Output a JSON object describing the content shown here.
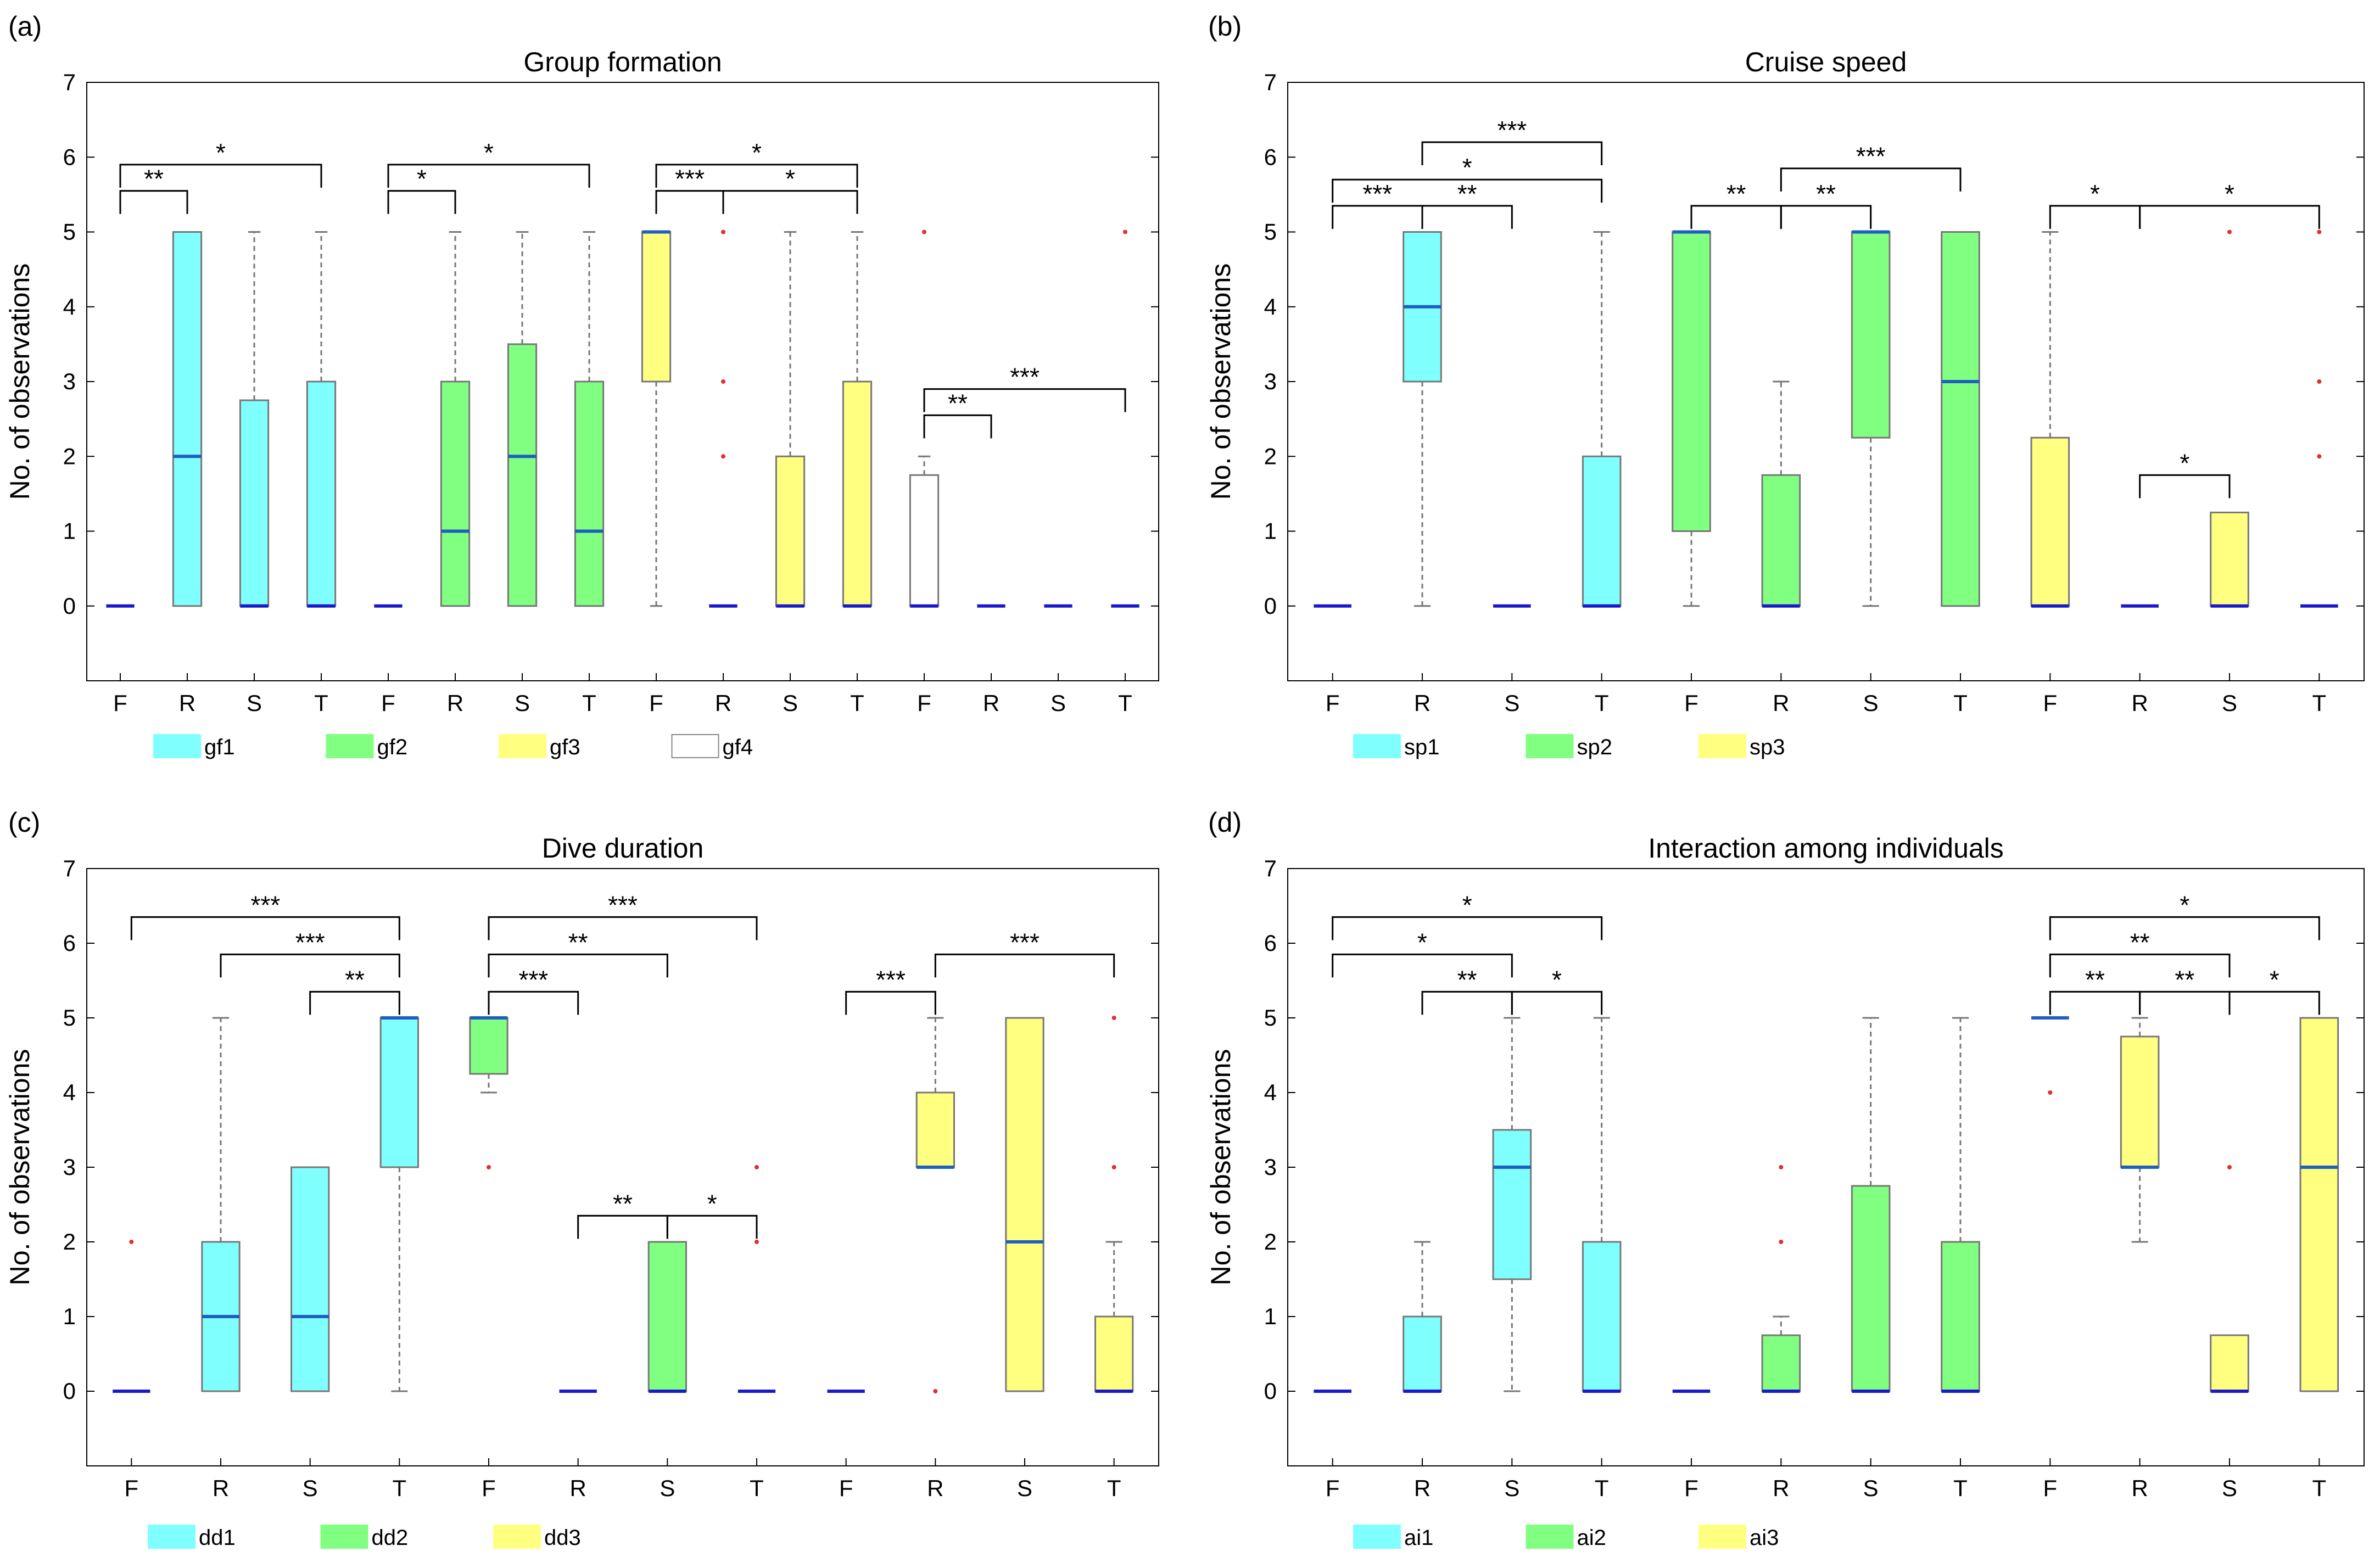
{
  "colors": {
    "cyan": "#80ffff",
    "green": "#80ff80",
    "yellow": "#ffff80",
    "white": "#ffffff",
    "median": "#1f5fbf",
    "zero_median": "#1a1acc",
    "outlier": "#e03030"
  },
  "chart_data": [
    {
      "id": "a",
      "panel_label": "(a)",
      "type": "box",
      "title": "Group formation",
      "ylabel": "No. of observations",
      "ylim": [
        -1,
        7
      ],
      "yticks": [
        0,
        1,
        2,
        3,
        4,
        5,
        6,
        7
      ],
      "categories": [
        "F",
        "R",
        "S",
        "T",
        "F",
        "R",
        "S",
        "T",
        "F",
        "R",
        "S",
        "T",
        "F",
        "R",
        "S",
        "T"
      ],
      "legend": [
        {
          "label": "gf1",
          "color": "#80ffff"
        },
        {
          "label": "gf2",
          "color": "#80ff80"
        },
        {
          "label": "gf3",
          "color": "#ffff80"
        },
        {
          "label": "gf4",
          "color": "#ffffff"
        }
      ],
      "boxes": [
        {
          "q1": 0,
          "med": 0,
          "q3": 0,
          "lo": 0,
          "hi": 0,
          "color": "#80ffff",
          "outliers": []
        },
        {
          "q1": 0,
          "med": 2,
          "q3": 5,
          "lo": 0,
          "hi": 5,
          "color": "#80ffff",
          "outliers": []
        },
        {
          "q1": 0,
          "med": 0,
          "q3": 2.75,
          "lo": 0,
          "hi": 5,
          "color": "#80ffff",
          "outliers": []
        },
        {
          "q1": 0,
          "med": 0,
          "q3": 3,
          "lo": 0,
          "hi": 5,
          "color": "#80ffff",
          "outliers": []
        },
        {
          "q1": 0,
          "med": 0,
          "q3": 0,
          "lo": 0,
          "hi": 0,
          "color": "#80ff80",
          "outliers": []
        },
        {
          "q1": 0,
          "med": 1,
          "q3": 3,
          "lo": 0,
          "hi": 5,
          "color": "#80ff80",
          "outliers": []
        },
        {
          "q1": 0,
          "med": 2,
          "q3": 3.5,
          "lo": 0,
          "hi": 5,
          "color": "#80ff80",
          "outliers": []
        },
        {
          "q1": 0,
          "med": 1,
          "q3": 3,
          "lo": 0,
          "hi": 5,
          "color": "#80ff80",
          "outliers": []
        },
        {
          "q1": 3,
          "med": 5,
          "q3": 5,
          "lo": 0,
          "hi": 5,
          "color": "#ffff80",
          "outliers": []
        },
        {
          "q1": 0,
          "med": 0,
          "q3": 0,
          "lo": 0,
          "hi": 0,
          "color": "#ffff80",
          "outliers": [
            2,
            3,
            5
          ]
        },
        {
          "q1": 0,
          "med": 0,
          "q3": 2,
          "lo": 0,
          "hi": 5,
          "color": "#ffff80",
          "outliers": []
        },
        {
          "q1": 0,
          "med": 0,
          "q3": 3,
          "lo": 0,
          "hi": 5,
          "color": "#ffff80",
          "outliers": []
        },
        {
          "q1": 0,
          "med": 0,
          "q3": 1.75,
          "lo": 0,
          "hi": 2,
          "color": "#ffffff",
          "outliers": [
            5
          ]
        },
        {
          "q1": 0,
          "med": 0,
          "q3": 0,
          "lo": 0,
          "hi": 0,
          "color": "#ffffff",
          "outliers": []
        },
        {
          "q1": 0,
          "med": 0,
          "q3": 0,
          "lo": 0,
          "hi": 0,
          "color": "#ffffff",
          "outliers": []
        },
        {
          "q1": 0,
          "med": 0,
          "q3": 0,
          "lo": 0,
          "hi": 0,
          "color": "#ffffff",
          "outliers": [
            5
          ]
        }
      ],
      "brackets": [
        {
          "from": 1,
          "to": 2,
          "y": 5.55,
          "label": "**"
        },
        {
          "from": 1,
          "to": 4,
          "y": 5.9,
          "label": "*"
        },
        {
          "from": 5,
          "to": 6,
          "y": 5.55,
          "label": "*"
        },
        {
          "from": 5,
          "to": 8,
          "y": 5.9,
          "label": "*"
        },
        {
          "from": 9,
          "to": 10,
          "y": 5.55,
          "label": "***"
        },
        {
          "from": 10,
          "to": 12,
          "y": 5.55,
          "label": "*"
        },
        {
          "from": 9,
          "to": 12,
          "y": 5.9,
          "label": "*"
        },
        {
          "from": 13,
          "to": 14,
          "y": 2.55,
          "label": "**"
        },
        {
          "from": 13,
          "to": 16,
          "y": 2.9,
          "label": "***"
        }
      ]
    },
    {
      "id": "b",
      "panel_label": "(b)",
      "type": "box",
      "title": "Cruise speed",
      "ylabel": "No. of observations",
      "ylim": [
        -1,
        7
      ],
      "yticks": [
        0,
        1,
        2,
        3,
        4,
        5,
        6,
        7
      ],
      "categories": [
        "F",
        "R",
        "S",
        "T",
        "F",
        "R",
        "S",
        "T",
        "F",
        "R",
        "S",
        "T"
      ],
      "legend": [
        {
          "label": "sp1",
          "color": "#80ffff"
        },
        {
          "label": "sp2",
          "color": "#80ff80"
        },
        {
          "label": "sp3",
          "color": "#ffff80"
        }
      ],
      "boxes": [
        {
          "q1": 0,
          "med": 0,
          "q3": 0,
          "lo": 0,
          "hi": 0,
          "color": "#80ffff",
          "outliers": []
        },
        {
          "q1": 3,
          "med": 4,
          "q3": 5,
          "lo": 0,
          "hi": 5,
          "color": "#80ffff",
          "outliers": []
        },
        {
          "q1": 0,
          "med": 0,
          "q3": 0,
          "lo": 0,
          "hi": 0,
          "color": "#80ffff",
          "outliers": []
        },
        {
          "q1": 0,
          "med": 0,
          "q3": 2,
          "lo": 0,
          "hi": 5,
          "color": "#80ffff",
          "outliers": []
        },
        {
          "q1": 1,
          "med": 5,
          "q3": 5,
          "lo": 0,
          "hi": 5,
          "color": "#80ff80",
          "outliers": []
        },
        {
          "q1": 0,
          "med": 0,
          "q3": 1.75,
          "lo": 0,
          "hi": 3,
          "color": "#80ff80",
          "outliers": []
        },
        {
          "q1": 2.25,
          "med": 5,
          "q3": 5,
          "lo": 0,
          "hi": 5,
          "color": "#80ff80",
          "outliers": []
        },
        {
          "q1": 0,
          "med": 3,
          "q3": 5,
          "lo": 0,
          "hi": 5,
          "color": "#80ff80",
          "outliers": []
        },
        {
          "q1": 0,
          "med": 0,
          "q3": 2.25,
          "lo": 0,
          "hi": 5,
          "color": "#ffff80",
          "outliers": []
        },
        {
          "q1": 0,
          "med": 0,
          "q3": 0,
          "lo": 0,
          "hi": 0,
          "color": "#ffff80",
          "outliers": []
        },
        {
          "q1": 0,
          "med": 0,
          "q3": 1.25,
          "lo": 0,
          "hi": 1.25,
          "color": "#ffff80",
          "outliers": [
            5
          ]
        },
        {
          "q1": 0,
          "med": 0,
          "q3": 0,
          "lo": 0,
          "hi": 0,
          "color": "#ffff80",
          "outliers": [
            2,
            3,
            5
          ]
        }
      ],
      "brackets": [
        {
          "from": 1,
          "to": 2,
          "y": 5.35,
          "label": "***"
        },
        {
          "from": 2,
          "to": 3,
          "y": 5.35,
          "label": "**"
        },
        {
          "from": 1,
          "to": 4,
          "y": 5.7,
          "label": "*"
        },
        {
          "from": 2,
          "to": 4,
          "y": 6.2,
          "label": "***"
        },
        {
          "from": 5,
          "to": 6,
          "y": 5.35,
          "label": "**"
        },
        {
          "from": 6,
          "to": 7,
          "y": 5.35,
          "label": "**"
        },
        {
          "from": 6,
          "to": 8,
          "y": 5.85,
          "label": "***"
        },
        {
          "from": 9,
          "to": 10,
          "y": 5.35,
          "label": "*"
        },
        {
          "from": 10,
          "to": 12,
          "y": 5.35,
          "label": "*"
        },
        {
          "from": 10,
          "to": 11,
          "y": 1.75,
          "label": "*"
        }
      ]
    },
    {
      "id": "c",
      "panel_label": "(c)",
      "type": "box",
      "title": "Dive duration",
      "ylabel": "No. of observations",
      "ylim": [
        -1,
        7
      ],
      "yticks": [
        0,
        1,
        2,
        3,
        4,
        5,
        6,
        7
      ],
      "categories": [
        "F",
        "R",
        "S",
        "T",
        "F",
        "R",
        "S",
        "T",
        "F",
        "R",
        "S",
        "T"
      ],
      "legend": [
        {
          "label": "dd1",
          "color": "#80ffff"
        },
        {
          "label": "dd2",
          "color": "#80ff80"
        },
        {
          "label": "dd3",
          "color": "#ffff80"
        }
      ],
      "boxes": [
        {
          "q1": 0,
          "med": 0,
          "q3": 0,
          "lo": 0,
          "hi": 0,
          "color": "#80ffff",
          "outliers": [
            2
          ]
        },
        {
          "q1": 0,
          "med": 1,
          "q3": 2,
          "lo": 0,
          "hi": 5,
          "color": "#80ffff",
          "outliers": []
        },
        {
          "q1": 0,
          "med": 1,
          "q3": 3,
          "lo": 0,
          "hi": 3,
          "color": "#80ffff",
          "outliers": []
        },
        {
          "q1": 3,
          "med": 5,
          "q3": 5,
          "lo": 0,
          "hi": 5,
          "color": "#80ffff",
          "outliers": []
        },
        {
          "q1": 4.25,
          "med": 5,
          "q3": 5,
          "lo": 4,
          "hi": 5,
          "color": "#80ff80",
          "outliers": [
            3
          ]
        },
        {
          "q1": 0,
          "med": 0,
          "q3": 0,
          "lo": 0,
          "hi": 0,
          "color": "#80ff80",
          "outliers": []
        },
        {
          "q1": 0,
          "med": 0,
          "q3": 2,
          "lo": 0,
          "hi": 2,
          "color": "#80ff80",
          "outliers": []
        },
        {
          "q1": 0,
          "med": 0,
          "q3": 0,
          "lo": 0,
          "hi": 0,
          "color": "#80ff80",
          "outliers": [
            2,
            3
          ]
        },
        {
          "q1": 0,
          "med": 0,
          "q3": 0,
          "lo": 0,
          "hi": 0,
          "color": "#ffff80",
          "outliers": []
        },
        {
          "q1": 3,
          "med": 3,
          "q3": 4,
          "lo": 3,
          "hi": 5,
          "color": "#ffff80",
          "outliers": [
            0
          ]
        },
        {
          "q1": 0,
          "med": 2,
          "q3": 5,
          "lo": 0,
          "hi": 5,
          "color": "#ffff80",
          "outliers": []
        },
        {
          "q1": 0,
          "med": 0,
          "q3": 1,
          "lo": 0,
          "hi": 2,
          "color": "#ffff80",
          "outliers": [
            3,
            5
          ]
        }
      ],
      "brackets": [
        {
          "from": 3,
          "to": 4,
          "y": 5.35,
          "label": "**"
        },
        {
          "from": 2,
          "to": 4,
          "y": 5.85,
          "label": "***"
        },
        {
          "from": 1,
          "to": 4,
          "y": 6.35,
          "label": "***"
        },
        {
          "from": 5,
          "to": 6,
          "y": 5.35,
          "label": "***"
        },
        {
          "from": 5,
          "to": 7,
          "y": 5.85,
          "label": "**"
        },
        {
          "from": 5,
          "to": 8,
          "y": 6.35,
          "label": "***"
        },
        {
          "from": 6,
          "to": 7,
          "y": 2.35,
          "label": "**"
        },
        {
          "from": 7,
          "to": 8,
          "y": 2.35,
          "label": "*"
        },
        {
          "from": 9,
          "to": 10,
          "y": 5.35,
          "label": "***"
        },
        {
          "from": 10,
          "to": 12,
          "y": 5.85,
          "label": "***"
        }
      ]
    },
    {
      "id": "d",
      "panel_label": "(d)",
      "type": "box",
      "title": "Interaction among individuals",
      "ylabel": "No. of observations",
      "ylim": [
        -1,
        7
      ],
      "yticks": [
        0,
        1,
        2,
        3,
        4,
        5,
        6,
        7
      ],
      "categories": [
        "F",
        "R",
        "S",
        "T",
        "F",
        "R",
        "S",
        "T",
        "F",
        "R",
        "S",
        "T"
      ],
      "legend": [
        {
          "label": "ai1",
          "color": "#80ffff"
        },
        {
          "label": "ai2",
          "color": "#80ff80"
        },
        {
          "label": "ai3",
          "color": "#ffff80"
        }
      ],
      "boxes": [
        {
          "q1": 0,
          "med": 0,
          "q3": 0,
          "lo": 0,
          "hi": 0,
          "color": "#80ffff",
          "outliers": []
        },
        {
          "q1": 0,
          "med": 0,
          "q3": 1,
          "lo": 0,
          "hi": 2,
          "color": "#80ffff",
          "outliers": []
        },
        {
          "q1": 1.5,
          "med": 3,
          "q3": 3.5,
          "lo": 0,
          "hi": 5,
          "color": "#80ffff",
          "outliers": []
        },
        {
          "q1": 0,
          "med": 0,
          "q3": 2,
          "lo": 0,
          "hi": 5,
          "color": "#80ffff",
          "outliers": []
        },
        {
          "q1": 0,
          "med": 0,
          "q3": 0,
          "lo": 0,
          "hi": 0,
          "color": "#80ff80",
          "outliers": []
        },
        {
          "q1": 0,
          "med": 0,
          "q3": 0.75,
          "lo": 0,
          "hi": 1,
          "color": "#80ff80",
          "outliers": [
            2,
            3
          ]
        },
        {
          "q1": 0,
          "med": 0,
          "q3": 2.75,
          "lo": 0,
          "hi": 5,
          "color": "#80ff80",
          "outliers": []
        },
        {
          "q1": 0,
          "med": 0,
          "q3": 2,
          "lo": 0,
          "hi": 5,
          "color": "#80ff80",
          "outliers": []
        },
        {
          "q1": 5,
          "med": 5,
          "q3": 5,
          "lo": 5,
          "hi": 5,
          "color": "#ffff80",
          "outliers": [
            4
          ]
        },
        {
          "q1": 3,
          "med": 3,
          "q3": 4.75,
          "lo": 2,
          "hi": 5,
          "color": "#ffff80",
          "outliers": []
        },
        {
          "q1": 0,
          "med": 0,
          "q3": 0.75,
          "lo": 0,
          "hi": 0.75,
          "color": "#ffff80",
          "outliers": [
            3
          ]
        },
        {
          "q1": 0,
          "med": 3,
          "q3": 5,
          "lo": 0,
          "hi": 5,
          "color": "#ffff80",
          "outliers": []
        }
      ],
      "brackets": [
        {
          "from": 2,
          "to": 3,
          "y": 5.35,
          "label": "**"
        },
        {
          "from": 3,
          "to": 4,
          "y": 5.35,
          "label": "*"
        },
        {
          "from": 1,
          "to": 3,
          "y": 5.85,
          "label": "*"
        },
        {
          "from": 1,
          "to": 4,
          "y": 6.35,
          "label": "*"
        },
        {
          "from": 9,
          "to": 10,
          "y": 5.35,
          "label": "**"
        },
        {
          "from": 10,
          "to": 11,
          "y": 5.35,
          "label": "**"
        },
        {
          "from": 11,
          "to": 12,
          "y": 5.35,
          "label": "*"
        },
        {
          "from": 9,
          "to": 11,
          "y": 5.85,
          "label": "**"
        },
        {
          "from": 9,
          "to": 12,
          "y": 6.35,
          "label": "*"
        }
      ]
    }
  ]
}
